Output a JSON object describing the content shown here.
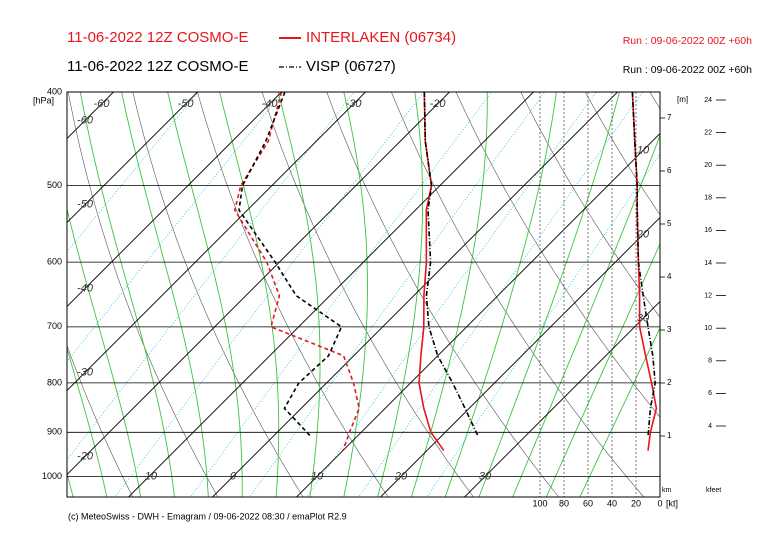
{
  "header": {
    "line1_model": "11-06-2022 12Z COSMO-E",
    "line1_run": "Run : 09-06-2022 00Z +60h",
    "line2_model": "11-06-2022 12Z COSMO-E",
    "line2_run": "Run : 09-06-2022 00Z +60h"
  },
  "footer": "(c) MeteoSwiss - DWH - Emagram / 09-06-2022 08:30 / emaPlot R2.9",
  "chart_data": {
    "type": "skewt",
    "ylabel": "[hPa]",
    "ylim": [
      400,
      1050
    ],
    "log_y": true,
    "yticks": [
      400,
      500,
      600,
      700,
      800,
      900,
      1000
    ],
    "xticks_bottom": [
      -10,
      0,
      10,
      20,
      30
    ],
    "xticks_left": [
      -20,
      -30,
      -40,
      -50,
      -60
    ],
    "xticks_top": [
      -60,
      -50,
      -40,
      -30,
      -20
    ],
    "xticks_right": [
      10,
      20,
      30
    ],
    "wind_label": "[kt]",
    "wind_ticks": [
      100,
      80,
      60,
      40,
      20,
      0
    ],
    "km_label": "km",
    "m_label": "[m]",
    "km_ticks": [
      1,
      2,
      3,
      4,
      5,
      6,
      7
    ],
    "kfeet_label": "kfeet",
    "kfeet_ticks": [
      4,
      6,
      8,
      10,
      12,
      14,
      16,
      18,
      20,
      22,
      24
    ],
    "series": [
      {
        "name": "INTERLAKEN (06734)",
        "color": "#e8141c",
        "style": "solid",
        "pressure": [
          400,
          450,
          500,
          530,
          600,
          650,
          700,
          750,
          800,
          850,
          900,
          940
        ],
        "temperature": [
          -23,
          -17,
          -11,
          -8.7,
          -2.5,
          1.2,
          4.9,
          8,
          11,
          14.6,
          18.3,
          22
        ],
        "dewpoint": [
          -40,
          -35.7,
          -33.7,
          -31.5,
          -21.5,
          -16,
          -13.3,
          -1.2,
          3.2,
          6.9,
          8.6,
          10
        ],
        "wind_speed": [
          23,
          21,
          19,
          19,
          18,
          17,
          17,
          12,
          7,
          3,
          8,
          10
        ]
      },
      {
        "name": "VISP (06727)",
        "color": "#000000",
        "style": "dashdot",
        "pressure": [
          400,
          450,
          500,
          530,
          600,
          650,
          700,
          750,
          800,
          850,
          910
        ],
        "temperature": [
          -23,
          -17,
          -11,
          -8.5,
          -2,
          1.5,
          5.5,
          10,
          15,
          19.5,
          24.5
        ],
        "dewpoint": [
          -39.6,
          -36,
          -33.5,
          -31,
          -20.5,
          -14,
          -4.9,
          -3,
          -3.3,
          -2,
          4.6
        ],
        "wind_speed": [
          23,
          21,
          19,
          19,
          18,
          14,
          10,
          6,
          4,
          8,
          10
        ]
      }
    ]
  }
}
